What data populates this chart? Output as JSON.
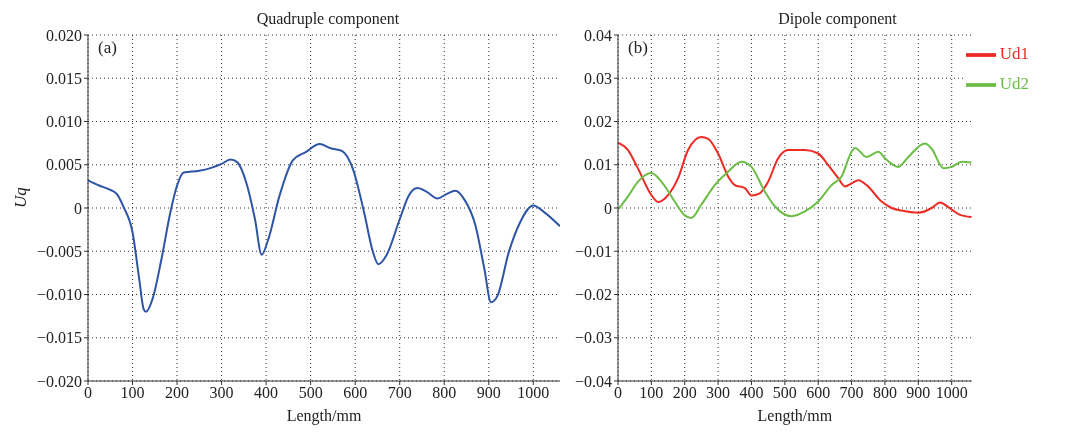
{
  "chart_data": [
    {
      "type": "line",
      "title": "Quadruple component",
      "xlabel": "Length/mm",
      "ylabel": "Uq",
      "annotations": [
        "(a)"
      ],
      "grid": true,
      "xlim": [
        0,
        1060
      ],
      "xticks": [
        0,
        100,
        200,
        300,
        400,
        500,
        600,
        700,
        800,
        900,
        1000
      ],
      "ylim": [
        -0.02,
        0.02
      ],
      "yticks": [
        {
          "value": -0.02,
          "label": "−0.020"
        },
        {
          "value": -0.015,
          "label": "−0.015"
        },
        {
          "value": -0.01,
          "label": "−0.010"
        },
        {
          "value": -0.005,
          "label": "−0.005"
        },
        {
          "value": 0,
          "label": "0"
        },
        {
          "value": 0.005,
          "label": "0.005"
        },
        {
          "value": 0.01,
          "label": "0.010"
        },
        {
          "value": 0.015,
          "label": "0.015"
        },
        {
          "value": 0.02,
          "label": "0.020"
        }
      ],
      "x": [
        0,
        25,
        50,
        65,
        80,
        100,
        115,
        125,
        130,
        145,
        165,
        185,
        200,
        215,
        250,
        280,
        300,
        320,
        335,
        355,
        375,
        390,
        405,
        430,
        460,
        490,
        520,
        545,
        570,
        595,
        620,
        640,
        652,
        670,
        700,
        720,
        740,
        760,
        785,
        805,
        825,
        845,
        870,
        890,
        905,
        920,
        945,
        970,
        1000,
        1025,
        1060
      ],
      "series": [
        {
          "color": "#2e55a5",
          "values": [
            0.0032,
            0.0026,
            0.0021,
            0.0016,
            0.0001,
            -0.0028,
            -0.0082,
            -0.0117,
            -0.012,
            -0.0105,
            -0.0059,
            -0.0005,
            0.0026,
            0.0041,
            0.0043,
            0.0047,
            0.0051,
            0.0056,
            0.0053,
            0.003,
            -0.0013,
            -0.0054,
            -0.0036,
            0.0014,
            0.0055,
            0.0065,
            0.0074,
            0.0069,
            0.0066,
            0.0045,
            -0.0005,
            -0.0051,
            -0.0065,
            -0.0055,
            -0.0013,
            0.0014,
            0.0023,
            0.0019,
            0.0011,
            0.0016,
            0.002,
            0.001,
            -0.002,
            -0.007,
            -0.0109,
            -0.0101,
            -0.0051,
            -0.0017,
            0.0003,
            -0.0005,
            -0.0021
          ]
        }
      ]
    },
    {
      "type": "line",
      "title": "Dipole component",
      "xlabel": "Length/mm",
      "annotations": [
        "(b)"
      ],
      "grid": true,
      "legend": "top right",
      "xlim": [
        0,
        1060
      ],
      "xticks": [
        0,
        100,
        200,
        300,
        400,
        500,
        600,
        700,
        800,
        900,
        1000
      ],
      "ylim": [
        -0.04,
        0.04
      ],
      "yticks": [
        {
          "value": -0.04,
          "label": "−0.04"
        },
        {
          "value": -0.03,
          "label": "−0.03"
        },
        {
          "value": -0.02,
          "label": "−0.02"
        },
        {
          "value": -0.01,
          "label": "−0.01"
        },
        {
          "value": 0,
          "label": "0"
        },
        {
          "value": 0.01,
          "label": "0.01"
        },
        {
          "value": 0.02,
          "label": "0.02"
        },
        {
          "value": 0.03,
          "label": "0.03"
        },
        {
          "value": 0.04,
          "label": "0.04"
        }
      ],
      "series": [
        {
          "name": "Ud1",
          "color": "#ee2a24",
          "x": [
            0,
            30,
            60,
            100,
            120,
            150,
            180,
            210,
            250,
            270,
            300,
            330,
            350,
            380,
            400,
            425,
            450,
            480,
            510,
            560,
            600,
            630,
            660,
            680,
            700,
            720,
            745,
            790,
            820,
            850,
            900,
            940,
            965,
            990,
            1020,
            1060
          ],
          "values": [
            0.0151,
            0.0134,
            0.0091,
            0.003,
            0.0014,
            0.003,
            0.0069,
            0.0134,
            0.0164,
            0.016,
            0.0126,
            0.0073,
            0.0053,
            0.0046,
            0.0029,
            0.0034,
            0.0061,
            0.0115,
            0.0134,
            0.0134,
            0.0126,
            0.0099,
            0.0069,
            0.005,
            0.0057,
            0.0064,
            0.0053,
            0.0015,
            0,
            -0.0006,
            -0.0011,
            0,
            0.0013,
            0.0002,
            -0.0014,
            -0.0021
          ]
        },
        {
          "name": "Ud2",
          "color": "#6cbd45",
          "x": [
            0,
            30,
            60,
            100,
            130,
            170,
            200,
            220,
            250,
            290,
            330,
            370,
            400,
            440,
            470,
            520,
            560,
            600,
            640,
            670,
            700,
            710,
            745,
            780,
            800,
            840,
            870,
            920,
            940,
            975,
            1000,
            1030,
            1060
          ],
          "values": [
            -0.0004,
            0.0027,
            0.0061,
            0.0081,
            0.0061,
            0.0015,
            -0.0017,
            -0.0023,
            0.0008,
            0.0053,
            0.0084,
            0.0107,
            0.0095,
            0.0038,
            0.0004,
            -0.0019,
            -0.0008,
            0.0015,
            0.0053,
            0.0073,
            0.013,
            0.0139,
            0.0118,
            0.013,
            0.0115,
            0.0095,
            0.0118,
            0.0149,
            0.0137,
            0.0092,
            0.0095,
            0.0107,
            0.0105
          ]
        }
      ]
    }
  ]
}
